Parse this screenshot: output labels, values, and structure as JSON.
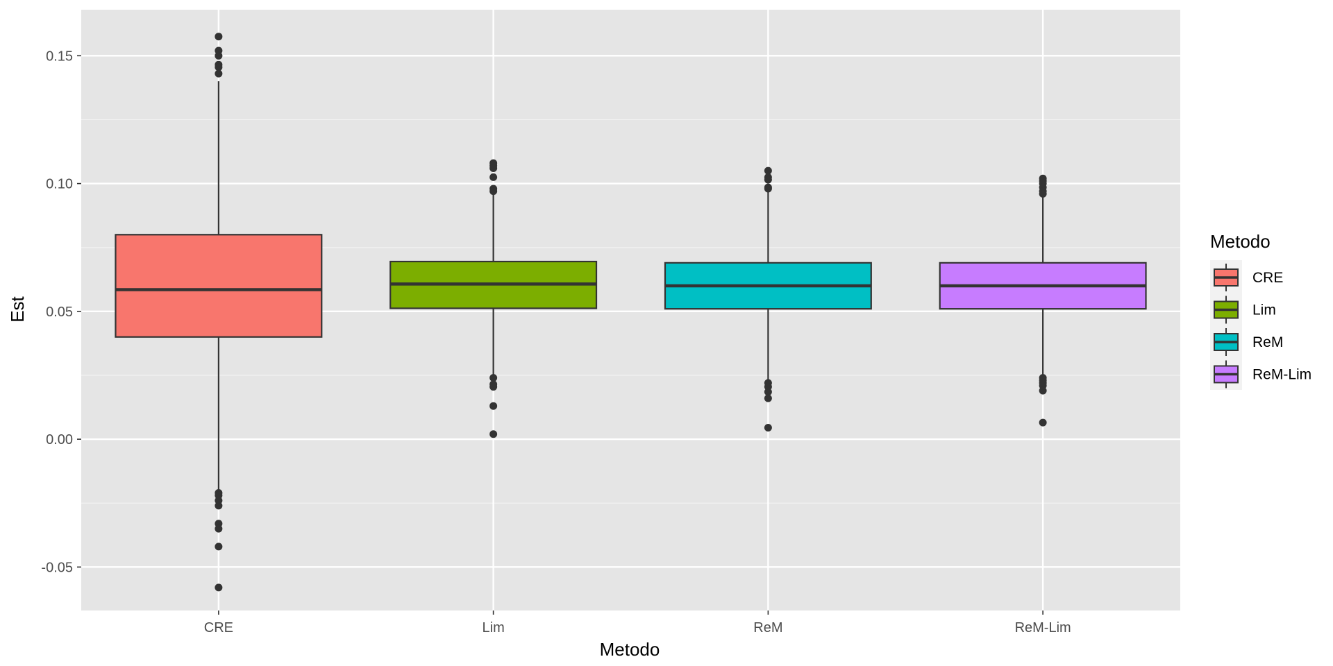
{
  "chart_data": {
    "type": "boxplot",
    "xlabel": "Metodo",
    "ylabel": "Est",
    "ylim": [
      -0.067,
      0.168
    ],
    "yticks": [
      -0.05,
      0.0,
      0.05,
      0.1,
      0.15
    ],
    "ytick_labels": [
      "-0.05",
      "0.00",
      "0.05",
      "0.10",
      "0.15"
    ],
    "grid": true,
    "panel_background": "#e5e5e5",
    "legend": {
      "title": "Metodo",
      "position": "right"
    },
    "categories": [
      "CRE",
      "Lim",
      "ReM",
      "ReM-Lim"
    ],
    "series": [
      {
        "name": "CRE",
        "color": "#f8766d",
        "q1": 0.04,
        "median": 0.0585,
        "q3": 0.08,
        "whisker_low": -0.02,
        "whisker_high": 0.14,
        "outliers": [
          0.1575,
          0.152,
          0.15,
          0.1465,
          0.1455,
          0.143,
          -0.021,
          -0.022,
          -0.024,
          -0.026,
          -0.033,
          -0.035,
          -0.042,
          -0.058
        ]
      },
      {
        "name": "Lim",
        "color": "#7cae00",
        "q1": 0.0512,
        "median": 0.0607,
        "q3": 0.0695,
        "whisker_low": 0.024,
        "whisker_high": 0.096,
        "outliers": [
          0.108,
          0.107,
          0.106,
          0.1025,
          0.098,
          0.097,
          0.024,
          0.0215,
          0.0205,
          0.013,
          0.002
        ]
      },
      {
        "name": "ReM",
        "color": "#00bfc4",
        "q1": 0.051,
        "median": 0.06,
        "q3": 0.069,
        "whisker_low": 0.023,
        "whisker_high": 0.097,
        "outliers": [
          0.105,
          0.1025,
          0.1015,
          0.0985,
          0.098,
          0.022,
          0.0205,
          0.0185,
          0.016,
          0.0045
        ]
      },
      {
        "name": "ReM-Lim",
        "color": "#c77cff",
        "q1": 0.051,
        "median": 0.06,
        "q3": 0.069,
        "whisker_low": 0.024,
        "whisker_high": 0.095,
        "outliers": [
          0.102,
          0.101,
          0.1,
          0.0985,
          0.097,
          0.096,
          0.024,
          0.023,
          0.022,
          0.021,
          0.019,
          0.0065
        ]
      }
    ]
  }
}
